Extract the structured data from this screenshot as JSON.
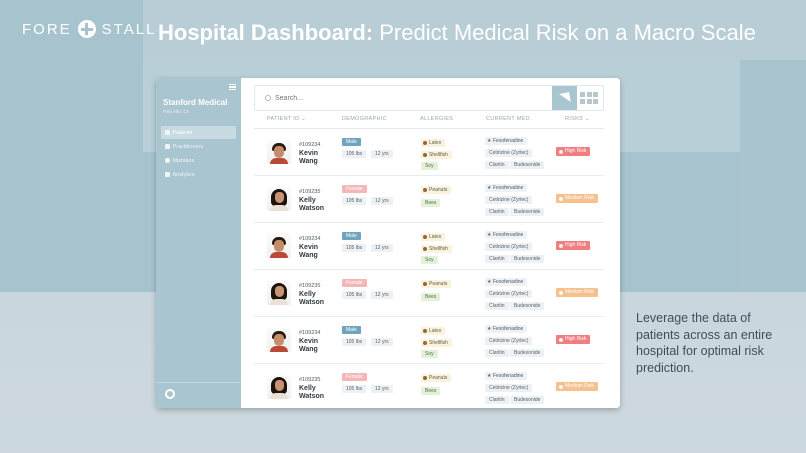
{
  "brand": {
    "left": "FORE",
    "right": "STALL",
    "icon": "plus-circle-icon"
  },
  "headline": {
    "bold": "Hospital Dashboard:",
    "rest": " Predict Medical Risk on a Macro Scale"
  },
  "tagline": "Leverage the data of patients across an entire hospital for optimal risk prediction.",
  "sidebar": {
    "org_name": "Stanford Medical",
    "org_location": "Palo Alto, CA",
    "items": [
      {
        "label": "Patients",
        "active": true,
        "icon": "user-icon"
      },
      {
        "label": "Practitioners",
        "active": false,
        "icon": "doc-icon"
      },
      {
        "label": "Mistakes",
        "active": false,
        "icon": "alert-icon"
      },
      {
        "label": "Analytics",
        "active": false,
        "icon": "chart-icon"
      }
    ]
  },
  "search": {
    "placeholder": "Search..."
  },
  "table": {
    "headers": [
      "PATIENT ID ⌄",
      "DEMOGRAPHIC",
      "ALLERGIES",
      "CURRENT MED.",
      "RISKS ⌄"
    ],
    "rows": [
      {
        "id": "#109234",
        "first": "Kevin",
        "last": "Wang",
        "gender": "Male",
        "weight": "105 lbs",
        "age": "12 yrs",
        "allergies": [
          "Latex",
          "Shellfish"
        ],
        "allergy_green": "Soy",
        "meds": [
          "Fexofenadine",
          "Cetirizine (Zyrtec)",
          "Claritin",
          "Budesonide"
        ],
        "risk": "High Risk",
        "risk_level": "high",
        "sex": "m"
      },
      {
        "id": "#109235",
        "first": "Kelly",
        "last": "Watson",
        "gender": "Female",
        "weight": "105 lbs",
        "age": "12 yrs",
        "allergies": [
          "Peanuts"
        ],
        "allergy_green": "Bees",
        "meds": [
          "Fexofenadine",
          "Cetirizine (Zyrtec)",
          "Claritin",
          "Budesonide"
        ],
        "risk": "Medium Risk",
        "risk_level": "med",
        "sex": "f"
      },
      {
        "id": "#109234",
        "first": "Kevin",
        "last": "Wang",
        "gender": "Male",
        "weight": "105 lbs",
        "age": "12 yrs",
        "allergies": [
          "Latex",
          "Shellfish"
        ],
        "allergy_green": "Soy",
        "meds": [
          "Fexofenadine",
          "Cetirizine (Zyrtec)",
          "Claritin",
          "Budesonide"
        ],
        "risk": "High Risk",
        "risk_level": "high",
        "sex": "m"
      },
      {
        "id": "#109235",
        "first": "Kelly",
        "last": "Watson",
        "gender": "Female",
        "weight": "105 lbs",
        "age": "12 yrs",
        "allergies": [
          "Peanuts"
        ],
        "allergy_green": "Bees",
        "meds": [
          "Fexofenadine",
          "Cetirizine (Zyrtec)",
          "Claritin",
          "Budesonide"
        ],
        "risk": "Medium Risk",
        "risk_level": "med",
        "sex": "f"
      },
      {
        "id": "#109234",
        "first": "Kevin",
        "last": "Wang",
        "gender": "Male",
        "weight": "105 lbs",
        "age": "12 yrs",
        "allergies": [
          "Latex",
          "Shellfish"
        ],
        "allergy_green": "Soy",
        "meds": [
          "Fexofenadine",
          "Cetirizine (Zyrtec)",
          "Claritin",
          "Budesonide"
        ],
        "risk": "High Risk",
        "risk_level": "high",
        "sex": "m"
      },
      {
        "id": "#109235",
        "first": "Kelly",
        "last": "Watson",
        "gender": "Female",
        "weight": "105 lbs",
        "age": "12 yrs",
        "allergies": [
          "Peanuts"
        ],
        "allergy_green": "Bees",
        "meds": [
          "Fexofenadine",
          "Cetirizine (Zyrtec)",
          "Claritin",
          "Budesonide"
        ],
        "risk": "Medium Risk",
        "risk_level": "med",
        "sex": "f"
      }
    ]
  },
  "colors": {
    "accent": "#a9c5d0",
    "high_risk": "#f07d80",
    "medium_risk": "#f6c08f",
    "male": "#6fa4bd",
    "female": "#f5b6b8"
  }
}
